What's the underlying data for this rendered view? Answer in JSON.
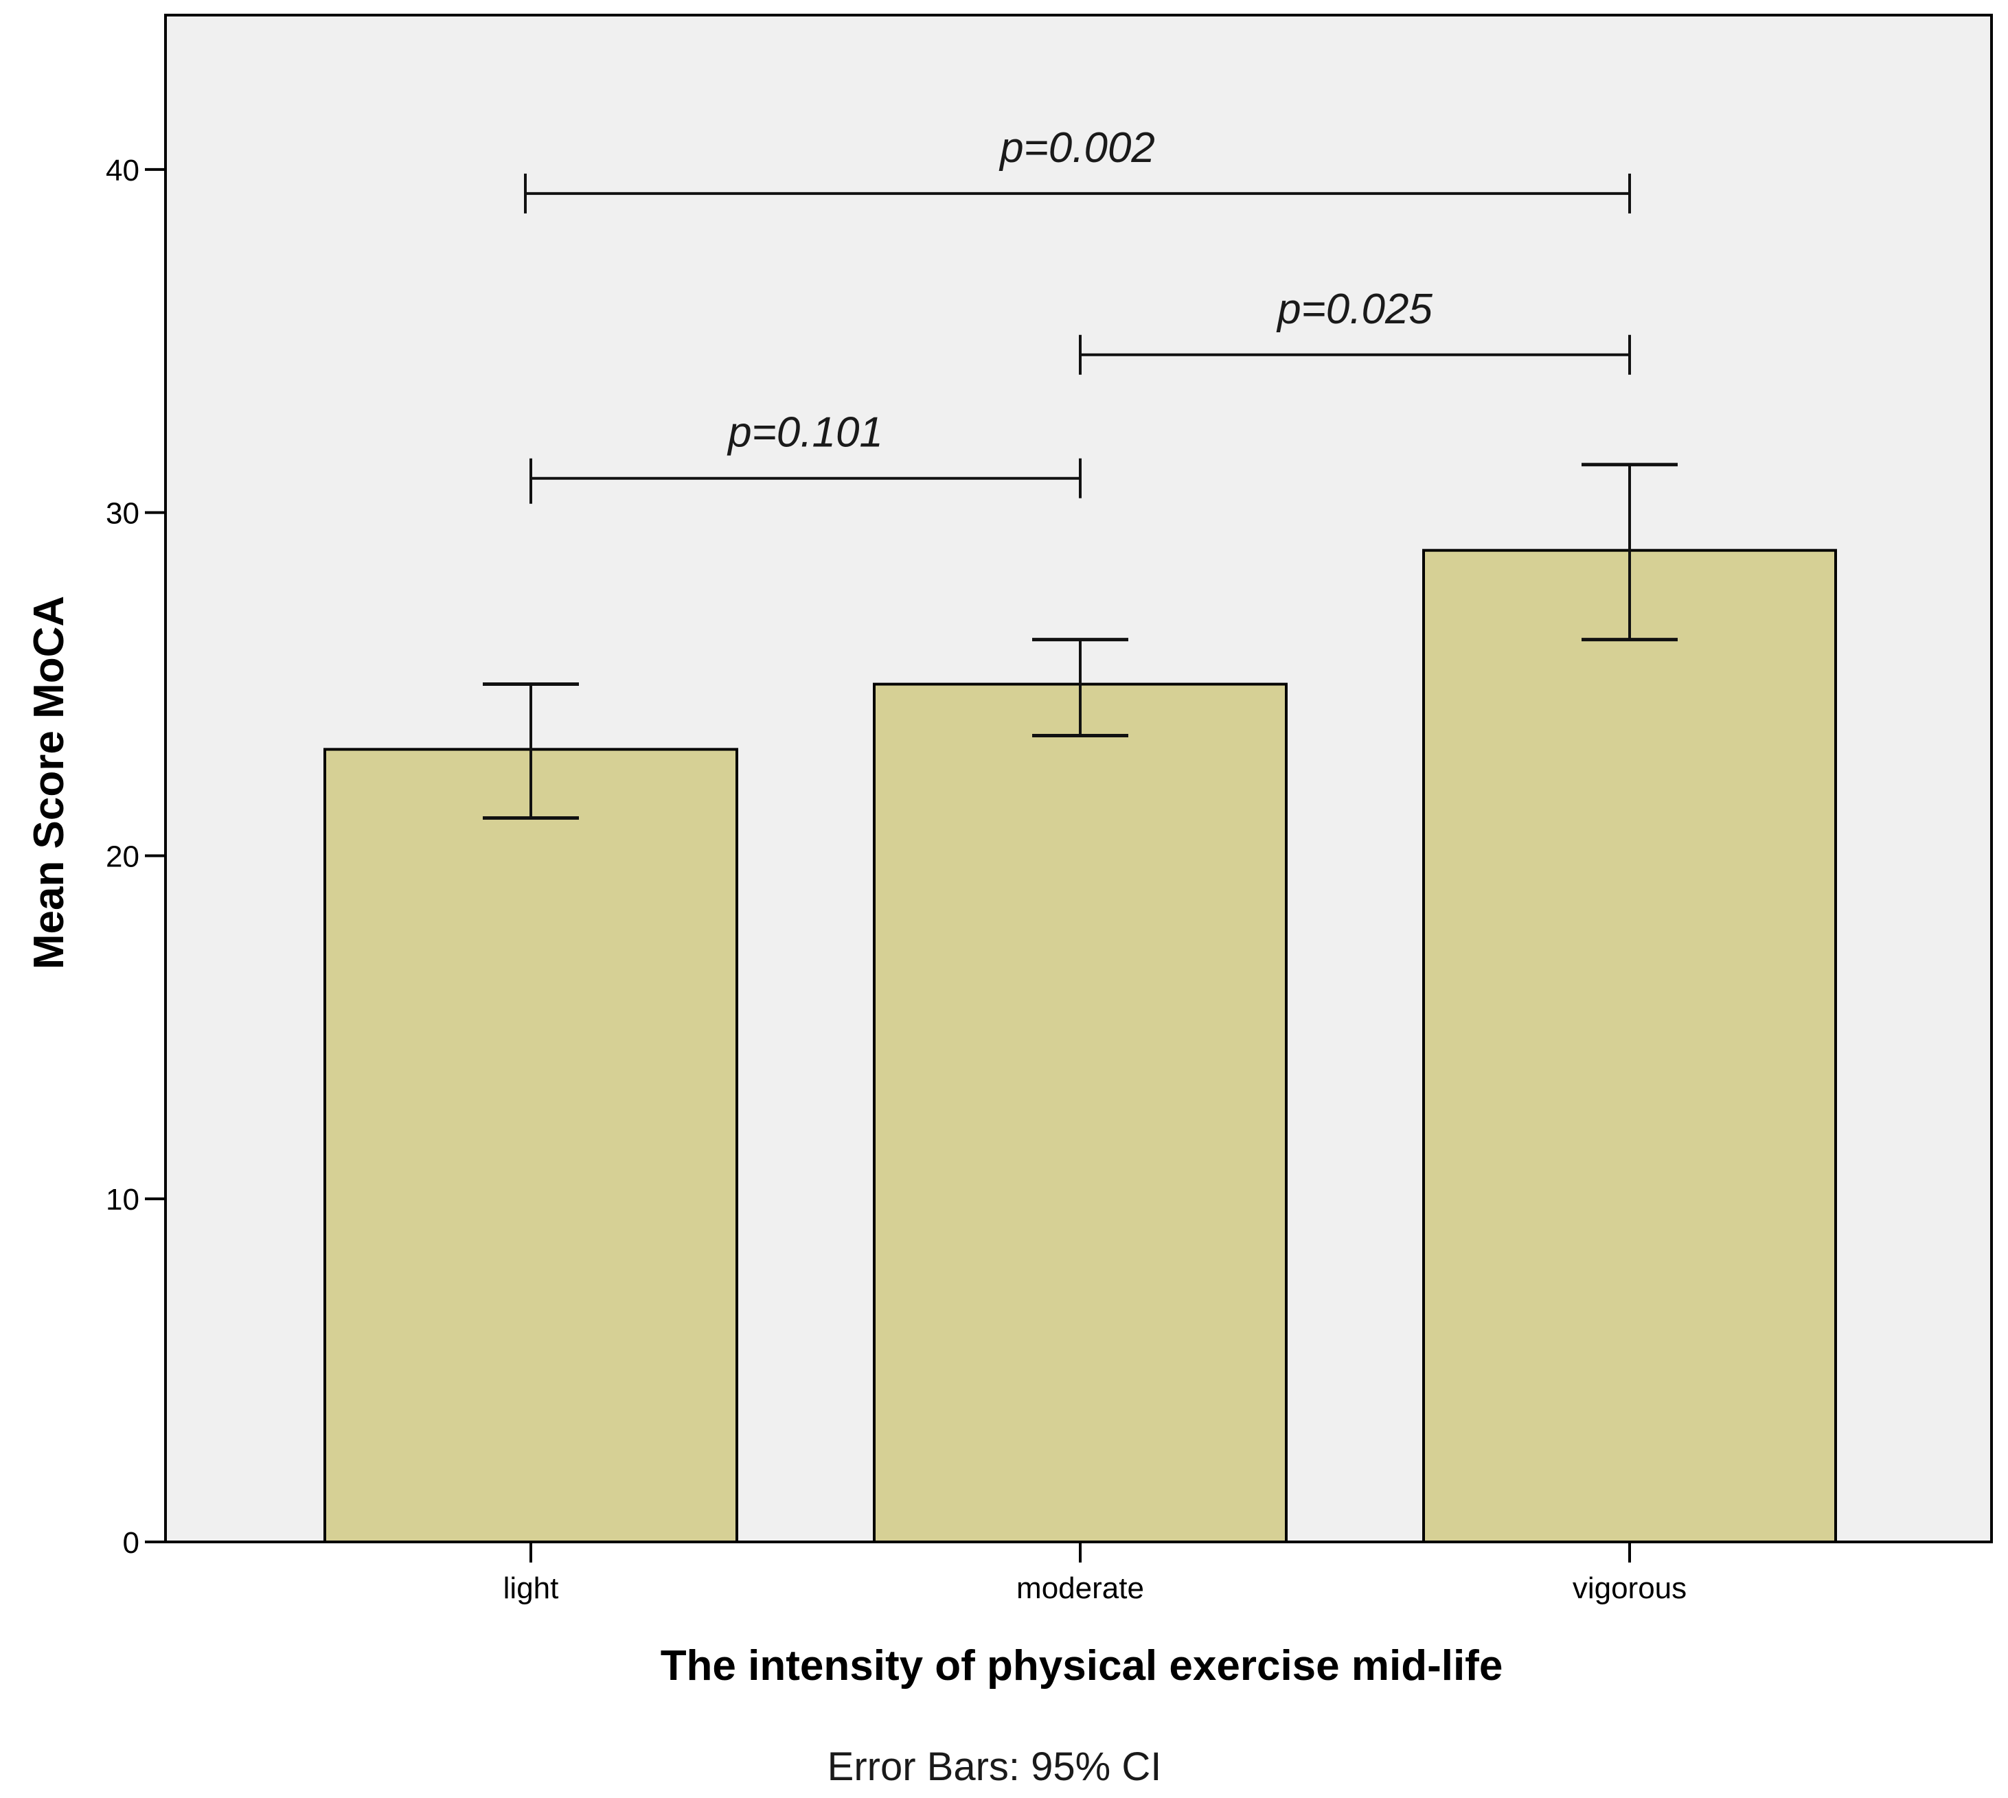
{
  "chart_data": {
    "type": "bar",
    "title": "",
    "xlabel": "The intensity of physical exercise mid-life",
    "ylabel": "Mean Score MoCA",
    "footnote": "Error Bars: 95% CI",
    "categories": [
      "light",
      "moderate",
      "vigorous"
    ],
    "values": [
      23.1,
      25.0,
      28.9
    ],
    "ci_low": [
      21.1,
      23.5,
      26.3
    ],
    "ci_high": [
      25.0,
      26.3,
      31.4
    ],
    "ylim": [
      0,
      44.5
    ],
    "yticks": [
      0,
      10,
      20,
      30,
      40
    ],
    "grid": false,
    "colors": {
      "bar_fill": "#d6d095",
      "plot_background": "#f0f0f0",
      "stroke": "#000000"
    },
    "comparisons": [
      {
        "from": 0,
        "to": 1,
        "label": "p=0.101",
        "y": 31.0
      },
      {
        "from": 1,
        "to": 2,
        "label": "p=0.025",
        "y": 34.6
      },
      {
        "from": 0,
        "to": 2,
        "label": "p=0.002",
        "y": 39.3
      }
    ]
  }
}
